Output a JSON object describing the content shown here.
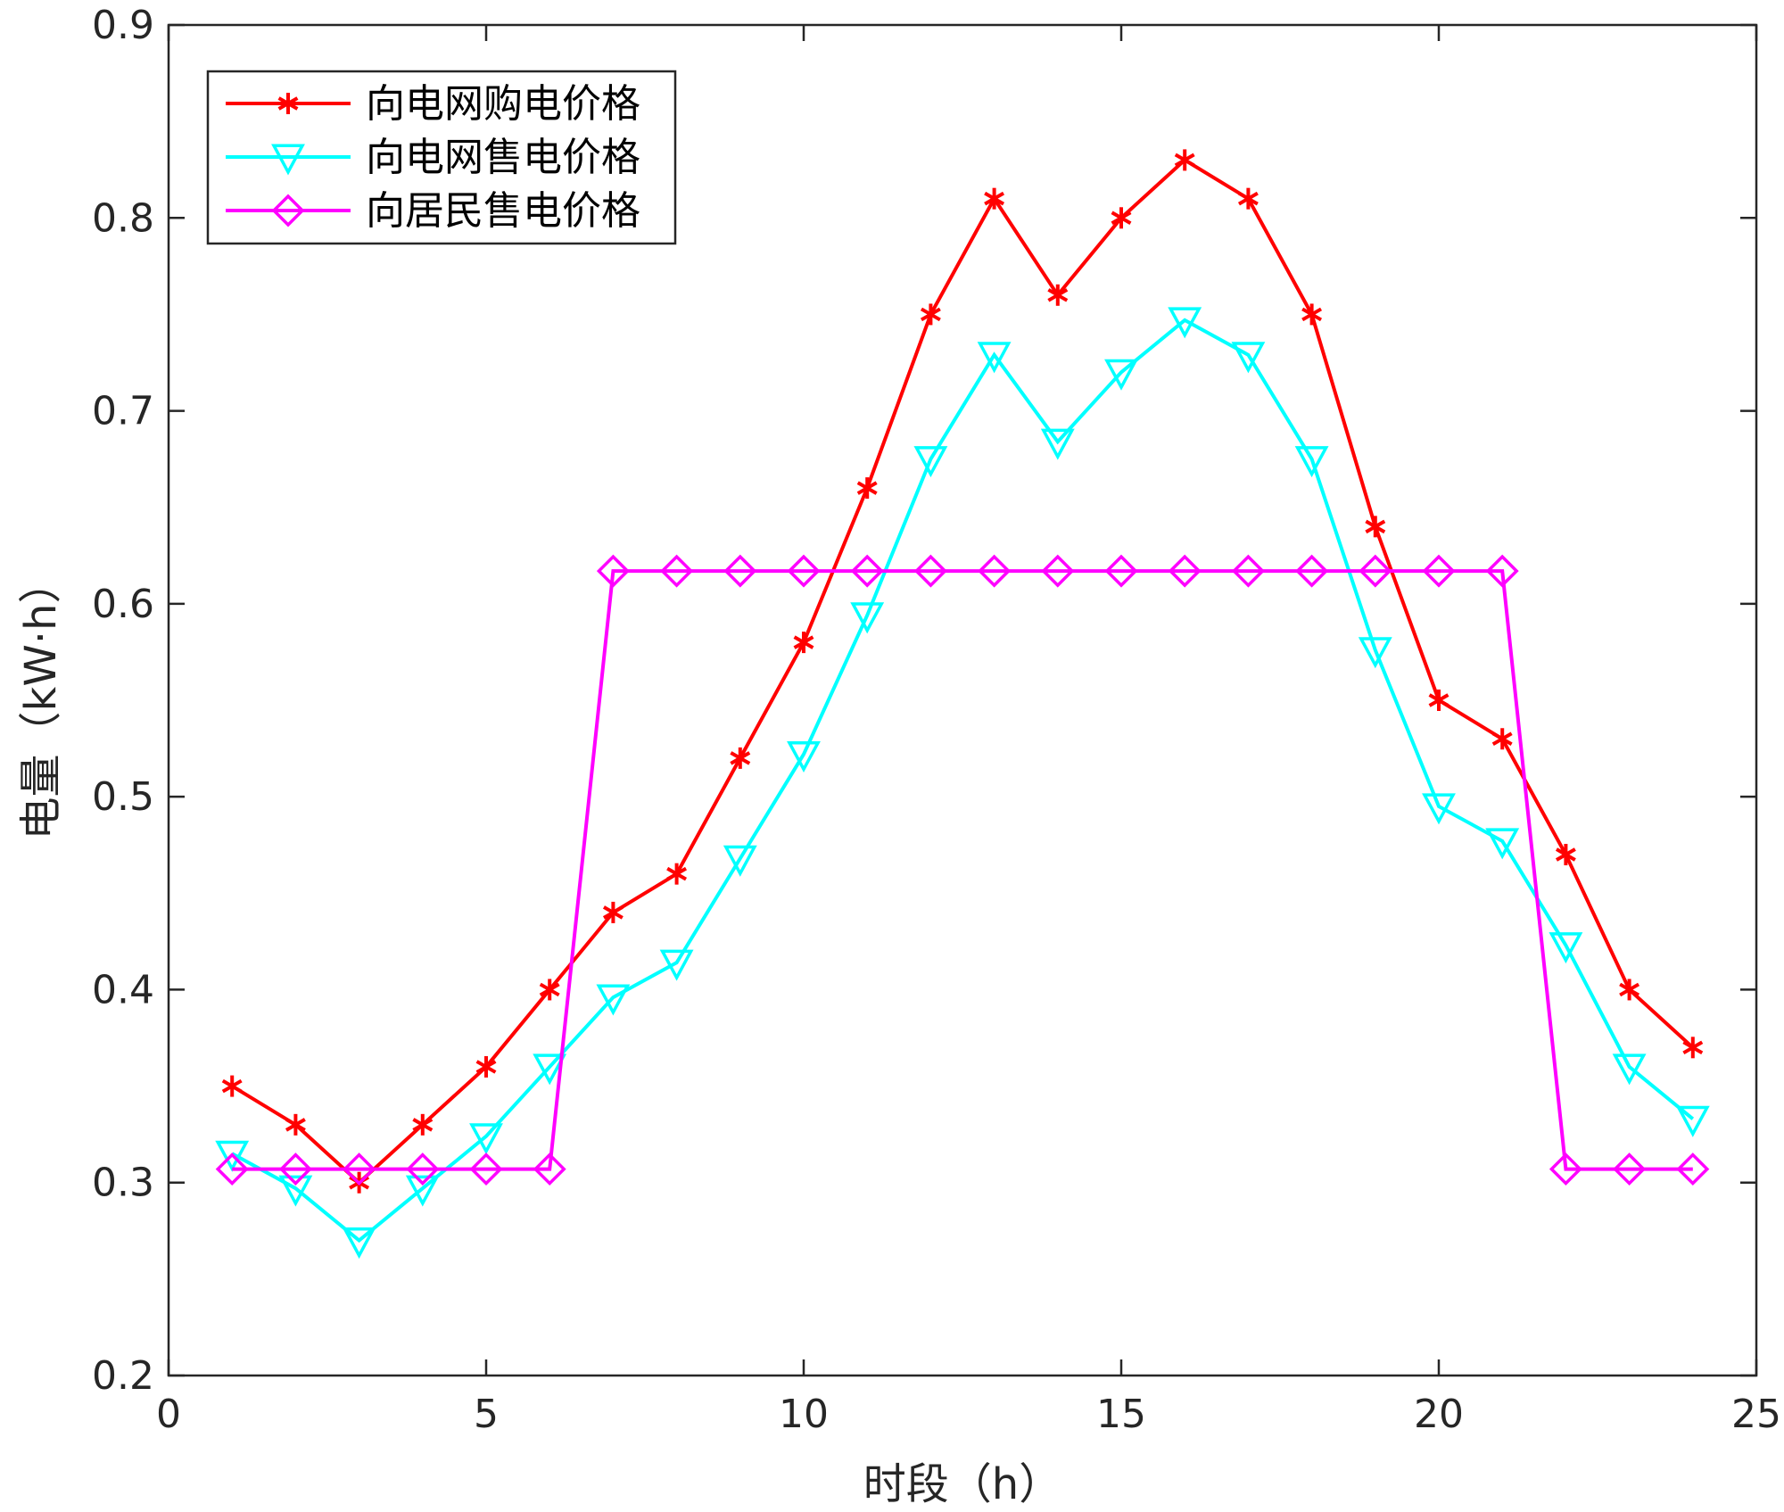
{
  "chart_data": {
    "type": "line",
    "title": "",
    "xlabel": "时段（h）",
    "ylabel": "电量（kW·h）",
    "xlim": [
      0,
      25
    ],
    "ylim": [
      0.2,
      0.9
    ],
    "xticks": [
      0,
      5,
      10,
      15,
      20,
      25
    ],
    "yticks": [
      0.2,
      0.3,
      0.4,
      0.5,
      0.6,
      0.7,
      0.8,
      0.9
    ],
    "legend_position": "top-left",
    "grid": false,
    "x": [
      1,
      2,
      3,
      4,
      5,
      6,
      7,
      8,
      9,
      10,
      11,
      12,
      13,
      14,
      15,
      16,
      17,
      18,
      19,
      20,
      21,
      22,
      23,
      24
    ],
    "series": [
      {
        "name": "向电网购电价格",
        "color": "#ff0000",
        "marker": "asterisk",
        "values": [
          0.35,
          0.33,
          0.3,
          0.33,
          0.36,
          0.4,
          0.44,
          0.46,
          0.52,
          0.58,
          0.66,
          0.75,
          0.81,
          0.76,
          0.8,
          0.83,
          0.81,
          0.75,
          0.64,
          0.55,
          0.53,
          0.47,
          0.4,
          0.37
        ]
      },
      {
        "name": "向电网售电价格",
        "color": "#00ffff",
        "marker": "triangle-down",
        "values": [
          0.315,
          0.297,
          0.27,
          0.297,
          0.324,
          0.36,
          0.396,
          0.414,
          0.468,
          0.522,
          0.594,
          0.675,
          0.729,
          0.684,
          0.72,
          0.747,
          0.729,
          0.675,
          0.576,
          0.495,
          0.477,
          0.423,
          0.36,
          0.333
        ]
      },
      {
        "name": "向居民售电价格",
        "color": "#ff00ff",
        "marker": "diamond",
        "values": [
          0.307,
          0.307,
          0.307,
          0.307,
          0.307,
          0.307,
          0.617,
          0.617,
          0.617,
          0.617,
          0.617,
          0.617,
          0.617,
          0.617,
          0.617,
          0.617,
          0.617,
          0.617,
          0.617,
          0.617,
          0.617,
          0.307,
          0.307,
          0.307
        ]
      }
    ]
  }
}
